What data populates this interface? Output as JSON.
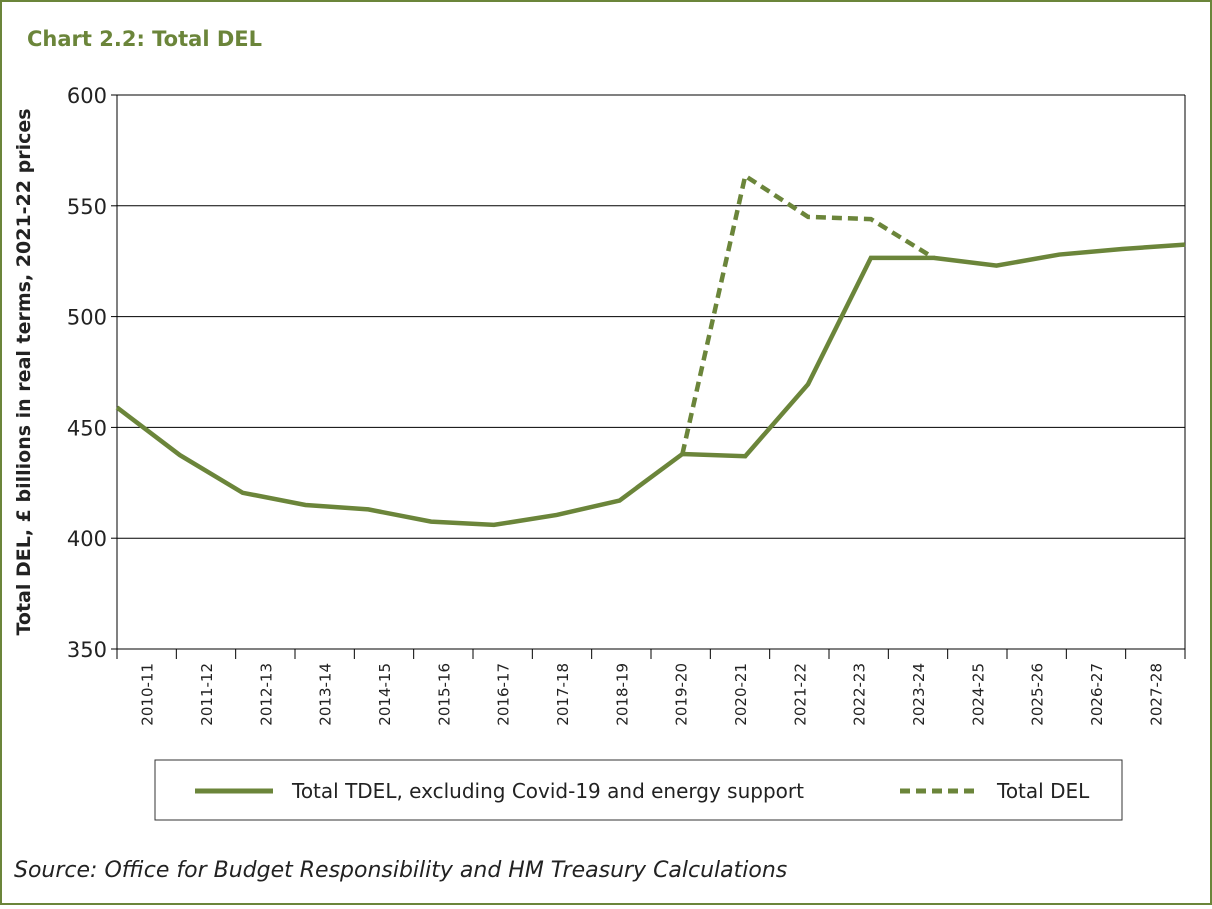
{
  "chart_data": {
    "type": "line",
    "title": "Chart 2.2: Total DEL",
    "y_label": "Total DEL, £ billions in real terms, 2021-22 prices",
    "source": "Source: Office for Budget Responsibility and HM Treasury Calculations",
    "categories": [
      "2010-11",
      "2011-12",
      "2012-13",
      "2013-14",
      "2014-15",
      "2015-16",
      "2016-17",
      "2017-18",
      "2018-19",
      "2019-20",
      "2020-21",
      "2021-22",
      "2022-23",
      "2023-24",
      "2024-25",
      "2025-26",
      "2026-27",
      "2027-28"
    ],
    "series": [
      {
        "name": "Total TDEL, excluding Covid-19 and energy support",
        "color": "#6b853a",
        "dash": false,
        "values": [
          459,
          437.5,
          420.5,
          415,
          413,
          407.5,
          406,
          410.5,
          417,
          438,
          437,
          469.5,
          526.5,
          526.5,
          523,
          528,
          530.5,
          532.5
        ]
      },
      {
        "name": "Total DEL",
        "color": "#6b853a",
        "dash": true,
        "values": [
          null,
          null,
          null,
          null,
          null,
          null,
          null,
          null,
          null,
          438,
          563.5,
          545,
          544,
          526.5,
          null,
          null,
          null,
          null
        ]
      }
    ],
    "ylim": [
      350,
      600
    ],
    "yticks": [
      350,
      400,
      450,
      500,
      550,
      600
    ],
    "grid": true
  }
}
